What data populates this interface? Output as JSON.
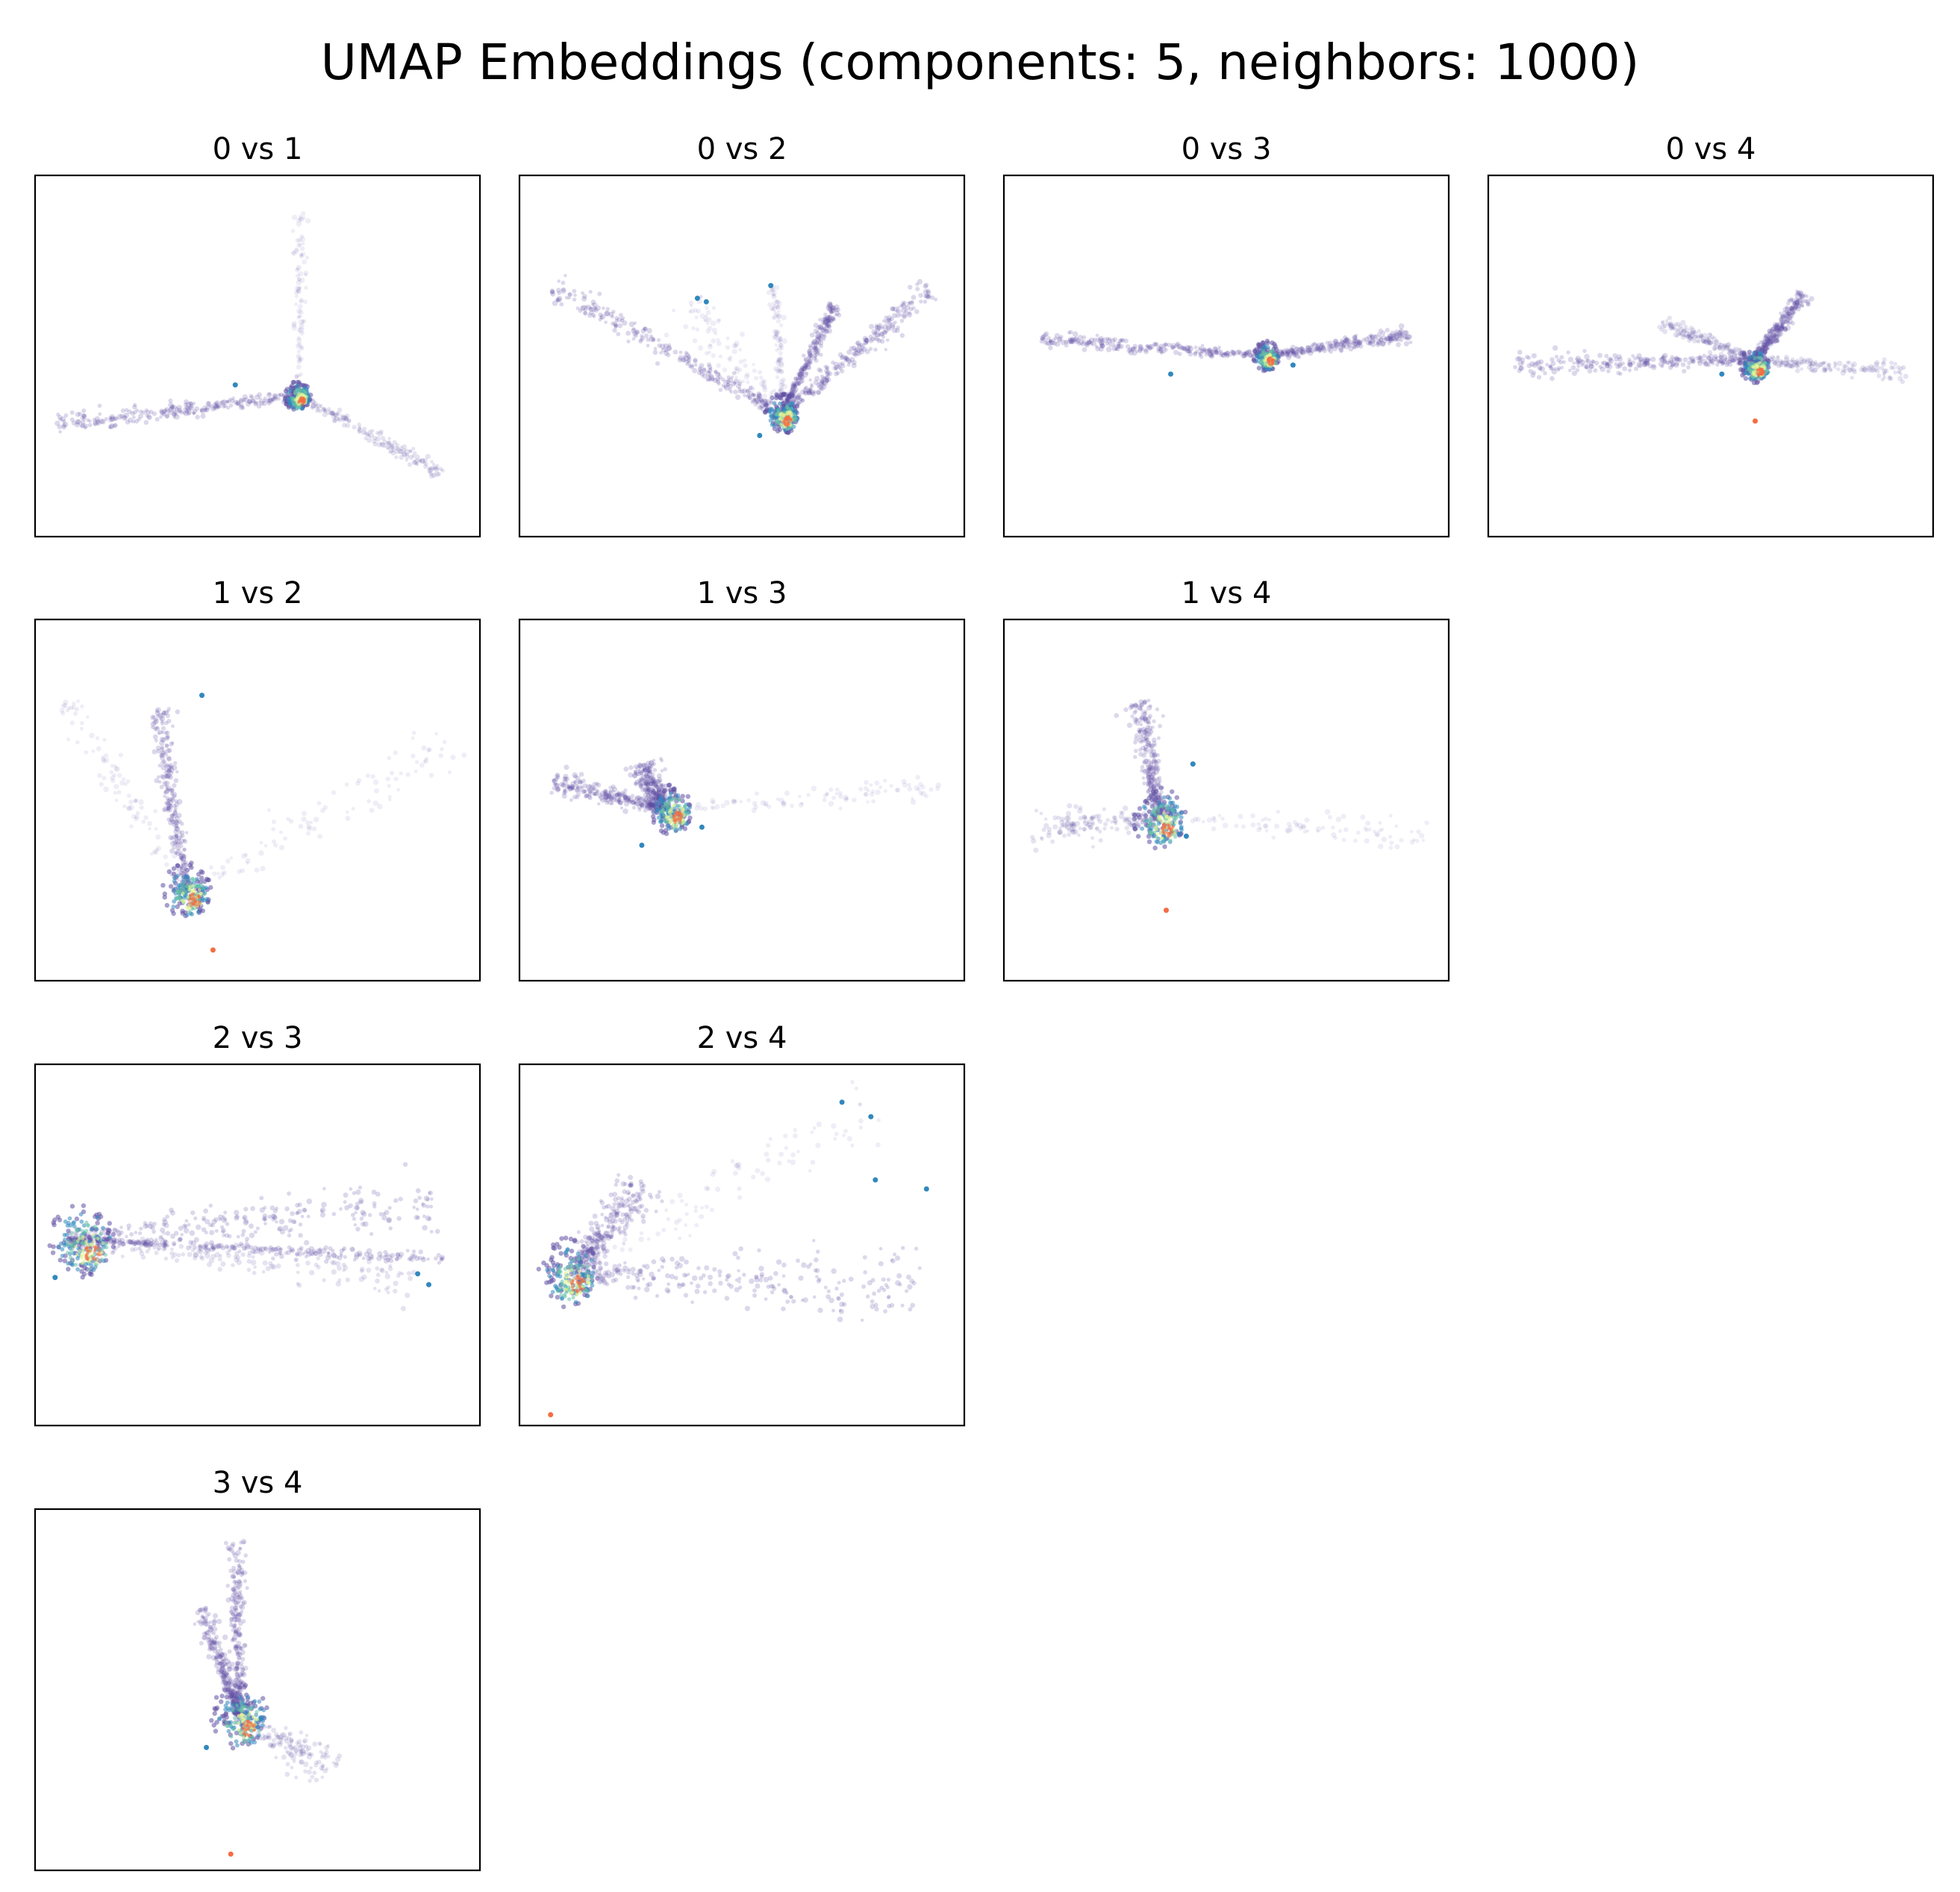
{
  "figure": {
    "title": "UMAP Embeddings (components: 5, neighbors: 1000)"
  },
  "colors": {
    "dense_low": "#5e4fa2",
    "mid_teal": "#3288bd",
    "mid_green": "#66c2a5",
    "mid_yellow": "#e6f598",
    "hot_orange": "#f46d43",
    "frame": "#000000"
  },
  "chart_data": [
    {
      "type": "scatter",
      "title": "0 vs 1",
      "xlabel": "",
      "ylabel": "",
      "xlim": [
        -10,
        10
      ],
      "ylim": [
        -10,
        10
      ],
      "grid": false,
      "arms": [
        {
          "from": [
            1.8,
            -2.2
          ],
          "to": [
            -9.0,
            -3.8
          ],
          "width": 0.5,
          "density": "high"
        },
        {
          "from": [
            1.8,
            -2.2
          ],
          "to": [
            8.3,
            -6.5
          ],
          "width": 0.4,
          "density": "medium"
        },
        {
          "from": [
            1.8,
            -2.2
          ],
          "to": [
            2.0,
            8.0
          ],
          "width": 0.3,
          "density": "low"
        }
      ],
      "core": {
        "center": [
          1.8,
          -2.2
        ],
        "radius": 0.6
      },
      "outliers": [
        [
          -1.0,
          -1.6
        ]
      ]
    },
    {
      "type": "scatter",
      "title": "0 vs 2",
      "xlabel": "",
      "ylabel": "",
      "xlim": [
        -10,
        10
      ],
      "ylim": [
        -10,
        10
      ],
      "grid": false,
      "arms": [
        {
          "from": [
            1.8,
            -3.2
          ],
          "to": [
            -8.5,
            3.8
          ],
          "width": 0.6,
          "density": "high"
        },
        {
          "from": [
            1.8,
            -3.2
          ],
          "to": [
            8.5,
            3.8
          ],
          "width": 0.6,
          "density": "high"
        },
        {
          "from": [
            1.8,
            -3.2
          ],
          "to": [
            4.2,
            2.8
          ],
          "width": 0.3,
          "density": "high"
        },
        {
          "from": [
            1.8,
            -3.2
          ],
          "to": [
            -2.5,
            3.0
          ],
          "width": 1.0,
          "density": "low"
        },
        {
          "from": [
            1.8,
            -3.2
          ],
          "to": [
            1.5,
            3.9
          ],
          "width": 0.3,
          "density": "low"
        }
      ],
      "core": {
        "center": [
          1.8,
          -3.2
        ],
        "radius": 0.8
      },
      "outliers": [
        [
          -2.0,
          3.2
        ],
        [
          -1.6,
          3.0
        ],
        [
          1.3,
          3.9
        ],
        [
          0.8,
          -4.4
        ]
      ]
    },
    {
      "type": "scatter",
      "title": "0 vs 3",
      "xlabel": "",
      "ylabel": "",
      "xlim": [
        -10,
        10
      ],
      "ylim": [
        -10,
        10
      ],
      "grid": false,
      "arms": [
        {
          "from": [
            1.8,
            0.0
          ],
          "to": [
            -8.3,
            0.9
          ],
          "width": 0.4,
          "density": "high"
        },
        {
          "from": [
            1.8,
            0.0
          ],
          "to": [
            8.3,
            1.2
          ],
          "width": 0.4,
          "density": "high"
        }
      ],
      "core": {
        "center": [
          1.8,
          0.0
        ],
        "radius": 0.6
      },
      "outliers": [
        [
          -2.5,
          -1.0
        ],
        [
          3.0,
          -0.5
        ]
      ]
    },
    {
      "type": "scatter",
      "title": "0 vs 4",
      "xlabel": "",
      "ylabel": "",
      "xlim": [
        -10,
        10
      ],
      "ylim": [
        -10,
        10
      ],
      "grid": false,
      "arms": [
        {
          "from": [
            2.0,
            -0.2
          ],
          "to": [
            -8.8,
            -0.5
          ],
          "width": 0.6,
          "density": "high"
        },
        {
          "from": [
            2.0,
            -0.2
          ],
          "to": [
            8.8,
            -1.0
          ],
          "width": 0.5,
          "density": "medium"
        },
        {
          "from": [
            2.0,
            -0.2
          ],
          "to": [
            4.2,
            3.4
          ],
          "width": 0.4,
          "density": "high"
        },
        {
          "from": [
            2.0,
            -0.2
          ],
          "to": [
            -2.3,
            1.8
          ],
          "width": 0.4,
          "density": "medium"
        }
      ],
      "core": {
        "center": [
          2.0,
          -0.5
        ],
        "radius": 0.7
      },
      "outliers": [
        [
          2.0,
          -3.6
        ],
        [
          0.5,
          -1.0
        ]
      ]
    },
    {
      "type": "scatter",
      "title": "1 vs 2",
      "xlabel": "",
      "ylabel": "",
      "xlim": [
        -10,
        10
      ],
      "ylim": [
        -10,
        10
      ],
      "grid": false,
      "arms": [
        {
          "from": [
            -3.2,
            -5.0
          ],
          "to": [
            -4.5,
            5.0
          ],
          "width": 0.5,
          "density": "high"
        },
        {
          "from": [
            -3.2,
            -5.0
          ],
          "to": [
            -8.5,
            5.5
          ],
          "width": 0.8,
          "density": "low"
        },
        {
          "from": [
            -3.2,
            -5.0
          ],
          "to": [
            9.0,
            3.2
          ],
          "width": 1.3,
          "density": "low"
        }
      ],
      "core": {
        "center": [
          -3.2,
          -5.0
        ],
        "radius": 1.1
      },
      "outliers": [
        [
          -2.0,
          -8.3
        ],
        [
          -2.5,
          5.8
        ]
      ]
    },
    {
      "type": "scatter",
      "title": "1 vs 3",
      "xlabel": "",
      "ylabel": "",
      "xlim": [
        -10,
        10
      ],
      "ylim": [
        -10,
        10
      ],
      "grid": false,
      "arms": [
        {
          "from": [
            -3.5,
            -0.5
          ],
          "to": [
            -8.5,
            1.0
          ],
          "width": 0.6,
          "density": "high"
        },
        {
          "from": [
            -3.5,
            -0.5
          ],
          "to": [
            9.0,
            0.7
          ],
          "width": 0.6,
          "density": "low"
        },
        {
          "from": [
            -3.5,
            -0.5
          ],
          "to": [
            -4.5,
            2.0
          ],
          "width": 0.7,
          "density": "high"
        }
      ],
      "core": {
        "center": [
          -3.2,
          -0.5
        ],
        "radius": 1.0
      },
      "outliers": [
        [
          -1.8,
          -1.5
        ],
        [
          -4.5,
          -2.5
        ]
      ]
    },
    {
      "type": "scatter",
      "title": "1 vs 4",
      "xlabel": "",
      "ylabel": "",
      "xlim": [
        -10,
        10
      ],
      "ylim": [
        -10,
        10
      ],
      "grid": false,
      "arms": [
        {
          "from": [
            -3.0,
            -0.8
          ],
          "to": [
            -4.0,
            5.5
          ],
          "width": 0.6,
          "density": "high"
        },
        {
          "from": [
            -3.0,
            -0.8
          ],
          "to": [
            -8.8,
            -1.8
          ],
          "width": 1.0,
          "density": "medium"
        },
        {
          "from": [
            -3.0,
            -0.8
          ],
          "to": [
            9.0,
            -2.0
          ],
          "width": 0.7,
          "density": "low"
        }
      ],
      "core": {
        "center": [
          -3.0,
          -1.0
        ],
        "radius": 1.2
      },
      "outliers": [
        [
          -2.7,
          -6.1
        ],
        [
          -1.5,
          2.0
        ],
        [
          -1.8,
          -2.0
        ]
      ]
    },
    {
      "type": "scatter",
      "title": "2 vs 3",
      "xlabel": "",
      "ylabel": "",
      "xlim": [
        -10,
        10
      ],
      "ylim": [
        -10,
        10
      ],
      "grid": false,
      "arms": [
        {
          "from": [
            -8.5,
            0.3
          ],
          "to": [
            8.0,
            2.3
          ],
          "width": 1.3,
          "density": "high"
        },
        {
          "from": [
            -8.5,
            0.3
          ],
          "to": [
            7.0,
            -1.8
          ],
          "width": 1.0,
          "density": "medium"
        },
        {
          "from": [
            -8.5,
            0.3
          ],
          "to": [
            8.5,
            -0.8
          ],
          "width": 0.3,
          "density": "high"
        }
      ],
      "core": {
        "center": [
          -7.9,
          0.3
        ],
        "radius": 1.5
      },
      "outliers": [
        [
          -9.1,
          -1.8
        ],
        [
          7.2,
          -1.6
        ],
        [
          7.7,
          -2.2
        ]
      ]
    },
    {
      "type": "scatter",
      "title": "2 vs 4",
      "xlabel": "",
      "ylabel": "",
      "xlim": [
        -10,
        10
      ],
      "ylim": [
        -10,
        10
      ],
      "grid": false,
      "arms": [
        {
          "from": [
            -7.5,
            -1.5
          ],
          "to": [
            6.0,
            7.8
          ],
          "width": 1.5,
          "density": "low"
        },
        {
          "from": [
            -7.5,
            -1.5
          ],
          "to": [
            8.0,
            -2.5
          ],
          "width": 1.8,
          "density": "high"
        },
        {
          "from": [
            -7.5,
            -1.5
          ],
          "to": [
            -4.5,
            3.5
          ],
          "width": 0.9,
          "density": "high"
        }
      ],
      "core": {
        "center": [
          -7.8,
          -1.5
        ],
        "radius": 1.4
      },
      "outliers": [
        [
          -8.6,
          -9.4
        ],
        [
          4.5,
          7.9
        ],
        [
          5.8,
          7.1
        ],
        [
          6.0,
          3.6
        ],
        [
          8.3,
          3.1
        ]
      ]
    },
    {
      "type": "scatter",
      "title": "3 vs 4",
      "xlabel": "",
      "ylabel": "",
      "xlim": [
        -10,
        10
      ],
      "ylim": [
        -10,
        10
      ],
      "grid": false,
      "arms": [
        {
          "from": [
            -0.8,
            -1.5
          ],
          "to": [
            -1.0,
            8.2
          ],
          "width": 0.4,
          "density": "high"
        },
        {
          "from": [
            -0.8,
            -1.5
          ],
          "to": [
            -2.5,
            4.5
          ],
          "width": 0.4,
          "density": "high"
        },
        {
          "from": [
            -0.8,
            -1.5
          ],
          "to": [
            3.3,
            -4.5
          ],
          "width": 1.0,
          "density": "medium"
        }
      ],
      "core": {
        "center": [
          -0.8,
          -1.5
        ],
        "radius": 1.3
      },
      "outliers": [
        [
          -1.2,
          -9.1
        ],
        [
          -2.3,
          -3.2
        ]
      ]
    }
  ]
}
